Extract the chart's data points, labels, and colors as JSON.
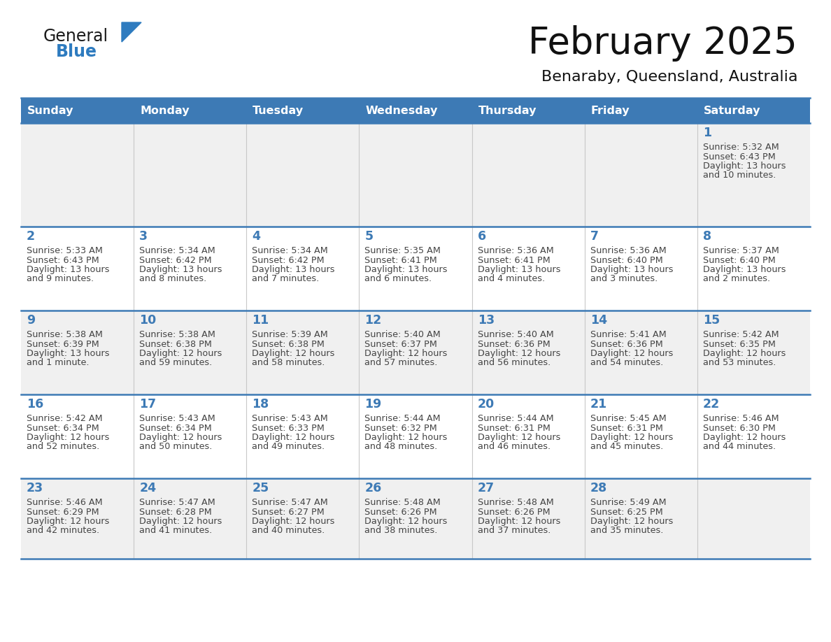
{
  "title": "February 2025",
  "subtitle": "Benaraby, Queensland, Australia",
  "header_bg": "#3d7ab5",
  "header_text": "#ffffff",
  "days_of_week": [
    "Sunday",
    "Monday",
    "Tuesday",
    "Wednesday",
    "Thursday",
    "Friday",
    "Saturday"
  ],
  "row_bg": [
    "#f0f0f0",
    "#ffffff",
    "#f0f0f0",
    "#ffffff",
    "#f0f0f0"
  ],
  "date_color": "#3d7ab5",
  "text_color": "#444444",
  "line_color": "#3d7ab5",
  "logo_general_color": "#1a1a1a",
  "logo_blue_color": "#2e7bbf",
  "logo_triangle_color": "#2e7bbf",
  "calendar": [
    [
      null,
      null,
      null,
      null,
      null,
      null,
      {
        "day": 1,
        "sunrise": "5:32 AM",
        "sunset": "6:43 PM",
        "daylight": "13 hours\nand 10 minutes."
      }
    ],
    [
      {
        "day": 2,
        "sunrise": "5:33 AM",
        "sunset": "6:43 PM",
        "daylight": "13 hours\nand 9 minutes."
      },
      {
        "day": 3,
        "sunrise": "5:34 AM",
        "sunset": "6:42 PM",
        "daylight": "13 hours\nand 8 minutes."
      },
      {
        "day": 4,
        "sunrise": "5:34 AM",
        "sunset": "6:42 PM",
        "daylight": "13 hours\nand 7 minutes."
      },
      {
        "day": 5,
        "sunrise": "5:35 AM",
        "sunset": "6:41 PM",
        "daylight": "13 hours\nand 6 minutes."
      },
      {
        "day": 6,
        "sunrise": "5:36 AM",
        "sunset": "6:41 PM",
        "daylight": "13 hours\nand 4 minutes."
      },
      {
        "day": 7,
        "sunrise": "5:36 AM",
        "sunset": "6:40 PM",
        "daylight": "13 hours\nand 3 minutes."
      },
      {
        "day": 8,
        "sunrise": "5:37 AM",
        "sunset": "6:40 PM",
        "daylight": "13 hours\nand 2 minutes."
      }
    ],
    [
      {
        "day": 9,
        "sunrise": "5:38 AM",
        "sunset": "6:39 PM",
        "daylight": "13 hours\nand 1 minute."
      },
      {
        "day": 10,
        "sunrise": "5:38 AM",
        "sunset": "6:38 PM",
        "daylight": "12 hours\nand 59 minutes."
      },
      {
        "day": 11,
        "sunrise": "5:39 AM",
        "sunset": "6:38 PM",
        "daylight": "12 hours\nand 58 minutes."
      },
      {
        "day": 12,
        "sunrise": "5:40 AM",
        "sunset": "6:37 PM",
        "daylight": "12 hours\nand 57 minutes."
      },
      {
        "day": 13,
        "sunrise": "5:40 AM",
        "sunset": "6:36 PM",
        "daylight": "12 hours\nand 56 minutes."
      },
      {
        "day": 14,
        "sunrise": "5:41 AM",
        "sunset": "6:36 PM",
        "daylight": "12 hours\nand 54 minutes."
      },
      {
        "day": 15,
        "sunrise": "5:42 AM",
        "sunset": "6:35 PM",
        "daylight": "12 hours\nand 53 minutes."
      }
    ],
    [
      {
        "day": 16,
        "sunrise": "5:42 AM",
        "sunset": "6:34 PM",
        "daylight": "12 hours\nand 52 minutes."
      },
      {
        "day": 17,
        "sunrise": "5:43 AM",
        "sunset": "6:34 PM",
        "daylight": "12 hours\nand 50 minutes."
      },
      {
        "day": 18,
        "sunrise": "5:43 AM",
        "sunset": "6:33 PM",
        "daylight": "12 hours\nand 49 minutes."
      },
      {
        "day": 19,
        "sunrise": "5:44 AM",
        "sunset": "6:32 PM",
        "daylight": "12 hours\nand 48 minutes."
      },
      {
        "day": 20,
        "sunrise": "5:44 AM",
        "sunset": "6:31 PM",
        "daylight": "12 hours\nand 46 minutes."
      },
      {
        "day": 21,
        "sunrise": "5:45 AM",
        "sunset": "6:31 PM",
        "daylight": "12 hours\nand 45 minutes."
      },
      {
        "day": 22,
        "sunrise": "5:46 AM",
        "sunset": "6:30 PM",
        "daylight": "12 hours\nand 44 minutes."
      }
    ],
    [
      {
        "day": 23,
        "sunrise": "5:46 AM",
        "sunset": "6:29 PM",
        "daylight": "12 hours\nand 42 minutes."
      },
      {
        "day": 24,
        "sunrise": "5:47 AM",
        "sunset": "6:28 PM",
        "daylight": "12 hours\nand 41 minutes."
      },
      {
        "day": 25,
        "sunrise": "5:47 AM",
        "sunset": "6:27 PM",
        "daylight": "12 hours\nand 40 minutes."
      },
      {
        "day": 26,
        "sunrise": "5:48 AM",
        "sunset": "6:26 PM",
        "daylight": "12 hours\nand 38 minutes."
      },
      {
        "day": 27,
        "sunrise": "5:48 AM",
        "sunset": "6:26 PM",
        "daylight": "12 hours\nand 37 minutes."
      },
      {
        "day": 28,
        "sunrise": "5:49 AM",
        "sunset": "6:25 PM",
        "daylight": "12 hours\nand 35 minutes."
      },
      null
    ]
  ]
}
